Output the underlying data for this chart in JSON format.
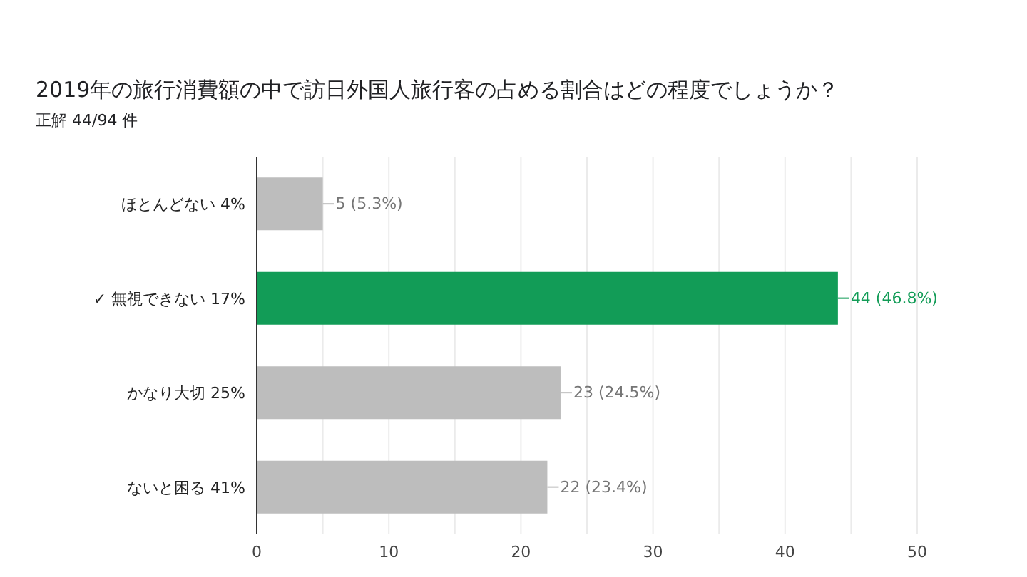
{
  "chart_data": {
    "type": "bar",
    "orientation": "horizontal",
    "title": "2019年の旅行消費額の中で訪日外国人旅行客の占める割合はどの程度でしょうか？",
    "subtitle": "正解 44/94 件",
    "categories": [
      "ほとんどない 4%",
      "✓ 無視できない 17%",
      "かなり大切 25%",
      "ないと困る 41%"
    ],
    "values": [
      5,
      44,
      23,
      22
    ],
    "colors": [
      "#bdbdbd",
      "#129c57",
      "#bdbdbd",
      "#bdbdbd"
    ],
    "value_labels": [
      "5 (5.3%)",
      "44 (46.8%)",
      "23 (24.5%)",
      "22 (23.4%)"
    ],
    "xlim": [
      0,
      50
    ],
    "xticks": [
      0,
      {
        "value": 5,
        "label": null
      },
      10,
      {
        "value": 15,
        "label": null
      },
      20,
      {
        "value": 25,
        "label": null
      },
      30,
      {
        "value": 35,
        "label": null
      },
      40,
      {
        "value": 45,
        "label": null
      },
      50
    ],
    "grid": "x"
  }
}
